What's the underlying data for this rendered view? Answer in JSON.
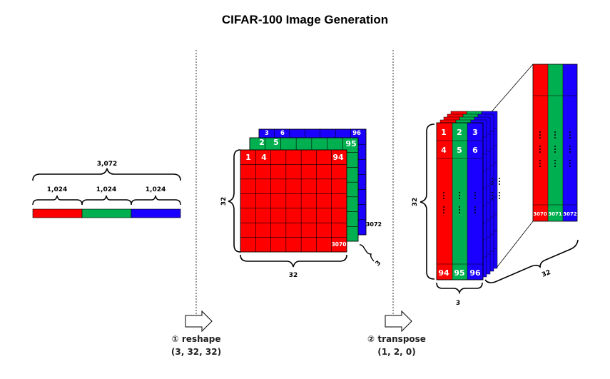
{
  "title": "CIFAR-100 Image Generation",
  "colors": {
    "red": "#ff0000",
    "green": "#00b050",
    "blue": "#1a00ff",
    "grid": "#000000"
  },
  "flat_vector": {
    "total": "3,072",
    "parts": [
      "1,024",
      "1,024",
      "1,024"
    ]
  },
  "reshape_grid": {
    "side_label": "32",
    "bottom_label": "32",
    "depth_label": "3",
    "red_first": [
      "1",
      "4"
    ],
    "red_last": "94",
    "red_end": "3070",
    "green_first": [
      "2",
      "5"
    ],
    "green_last": "95",
    "blue_first": [
      "3",
      "6"
    ],
    "blue_last": "96",
    "blue_end": "3072"
  },
  "transposed": {
    "side_label": "32",
    "bottom_label": "3",
    "depth_label": "32",
    "rows": [
      [
        "1",
        "2",
        "3"
      ],
      [
        "4",
        "5",
        "6"
      ]
    ],
    "last_row": [
      "94",
      "95",
      "96"
    ],
    "back_last": [
      "3070",
      "3071",
      "3072"
    ],
    "dots": "..."
  },
  "steps": [
    {
      "label": "① reshape",
      "shape": "(3, 32, 32)"
    },
    {
      "label": "② transpose",
      "shape": "(1, 2, 0)"
    }
  ]
}
